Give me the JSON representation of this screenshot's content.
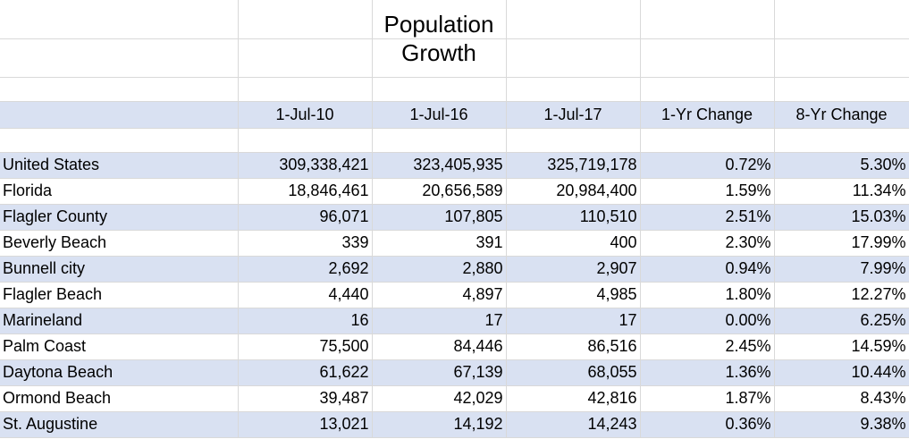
{
  "title": {
    "line1": "Population",
    "line2": "Growth"
  },
  "columns": [
    "1-Jul-10",
    "1-Jul-16",
    "1-Jul-17",
    "1-Yr Change",
    "8-Yr Change"
  ],
  "rows": [
    {
      "name": "United States",
      "values": [
        "309,338,421",
        "323,405,935",
        "325,719,178",
        "0.72%",
        "5.30%"
      ]
    },
    {
      "name": "Florida",
      "values": [
        "18,846,461",
        "20,656,589",
        "20,984,400",
        "1.59%",
        "11.34%"
      ]
    },
    {
      "name": "Flagler County",
      "values": [
        "96,071",
        "107,805",
        "110,510",
        "2.51%",
        "15.03%"
      ]
    },
    {
      "name": "Beverly Beach",
      "values": [
        "339",
        "391",
        "400",
        "2.30%",
        "17.99%"
      ]
    },
    {
      "name": "Bunnell city",
      "values": [
        "2,692",
        "2,880",
        "2,907",
        "0.94%",
        "7.99%"
      ]
    },
    {
      "name": "Flagler Beach",
      "values": [
        "4,440",
        "4,897",
        "4,985",
        "1.80%",
        "12.27%"
      ]
    },
    {
      "name": "Marineland",
      "values": [
        "16",
        "17",
        "17",
        "0.00%",
        "6.25%"
      ]
    },
    {
      "name": "Palm Coast",
      "values": [
        "75,500",
        "84,446",
        "86,516",
        "2.45%",
        "14.59%"
      ]
    },
    {
      "name": "Daytona Beach",
      "values": [
        "61,622",
        "67,139",
        "68,055",
        "1.36%",
        "10.44%"
      ]
    },
    {
      "name": "Ormond Beach",
      "values": [
        "39,487",
        "42,029",
        "42,816",
        "1.87%",
        "8.43%"
      ]
    },
    {
      "name": "St. Augustine",
      "values": [
        "13,021",
        "14,192",
        "14,243",
        "0.36%",
        "9.38%"
      ]
    }
  ],
  "colors": {
    "band": "#d9e1f2",
    "grid": "#d9d9d9"
  }
}
